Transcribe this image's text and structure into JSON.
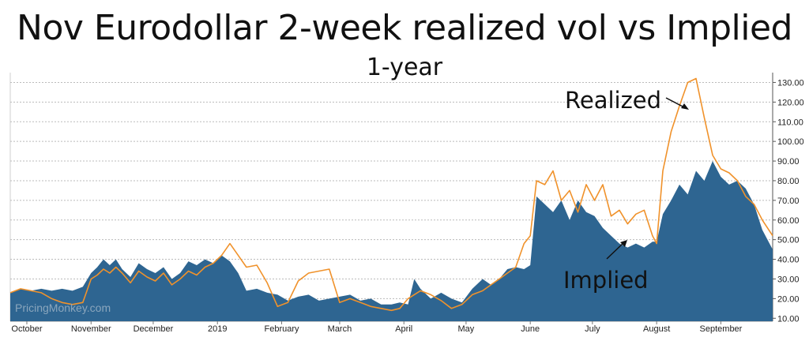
{
  "watermark": "PricingMonkey.com",
  "annotations": {
    "realized": "Realized",
    "implied": "Implied"
  },
  "chart_data": {
    "type": "area",
    "title": "Nov Eurodollar 2-week realized vol vs Implied",
    "subtitle": "1-year",
    "xlabel": "",
    "ylabel": "",
    "ylim": [
      8.5,
      135
    ],
    "y_ticks": [
      10,
      20,
      30,
      40,
      50,
      60,
      70,
      80,
      90,
      100,
      110,
      120,
      130
    ],
    "y_tick_labels": [
      "10.00",
      "20.00",
      "30.00",
      "40.00",
      "50.00",
      "60.00",
      "70.00",
      "80.00",
      "90.00",
      "100.00",
      "110.00",
      "120.00",
      "130.00"
    ],
    "x_tick_labels": [
      "October",
      "November",
      "December",
      "2019",
      "February",
      "March",
      "April",
      "May",
      "June",
      "July",
      "August",
      "September"
    ],
    "x_tick_dates": [
      "2018-10-01",
      "2018-11-01",
      "2018-12-01",
      "2019-01-01",
      "2019-02-01",
      "2019-03-01",
      "2019-04-01",
      "2019-05-01",
      "2019-06-01",
      "2019-07-01",
      "2019-08-01",
      "2019-09-01"
    ],
    "x_range": [
      "2018-09-23",
      "2019-09-26"
    ],
    "grid": true,
    "series": [
      {
        "name": "Implied",
        "style": "area",
        "color": "#2e6591",
        "points": [
          [
            "2018-09-23",
            23
          ],
          [
            "2018-09-28",
            25
          ],
          [
            "2018-10-03",
            24
          ],
          [
            "2018-10-08",
            25
          ],
          [
            "2018-10-13",
            24
          ],
          [
            "2018-10-18",
            25
          ],
          [
            "2018-10-23",
            24
          ],
          [
            "2018-10-28",
            26
          ],
          [
            "2018-11-01",
            33
          ],
          [
            "2018-11-04",
            36
          ],
          [
            "2018-11-07",
            40
          ],
          [
            "2018-11-10",
            37
          ],
          [
            "2018-11-13",
            40
          ],
          [
            "2018-11-16",
            35
          ],
          [
            "2018-11-20",
            31
          ],
          [
            "2018-11-24",
            38
          ],
          [
            "2018-11-28",
            35
          ],
          [
            "2018-12-02",
            33
          ],
          [
            "2018-12-06",
            36
          ],
          [
            "2018-12-10",
            30
          ],
          [
            "2018-12-14",
            33
          ],
          [
            "2018-12-18",
            39
          ],
          [
            "2018-12-22",
            37
          ],
          [
            "2018-12-26",
            40
          ],
          [
            "2018-12-30",
            38
          ],
          [
            "2019-01-03",
            42
          ],
          [
            "2019-01-07",
            39
          ],
          [
            "2019-01-11",
            33
          ],
          [
            "2019-01-15",
            24
          ],
          [
            "2019-01-20",
            25
          ],
          [
            "2019-01-25",
            23
          ],
          [
            "2019-01-30",
            22
          ],
          [
            "2019-02-04",
            19
          ],
          [
            "2019-02-09",
            21
          ],
          [
            "2019-02-14",
            22
          ],
          [
            "2019-02-19",
            19
          ],
          [
            "2019-02-24",
            20
          ],
          [
            "2019-03-01",
            21
          ],
          [
            "2019-03-06",
            22
          ],
          [
            "2019-03-11",
            19
          ],
          [
            "2019-03-16",
            20
          ],
          [
            "2019-03-21",
            17
          ],
          [
            "2019-03-26",
            17
          ],
          [
            "2019-03-30",
            18
          ],
          [
            "2019-04-03",
            17
          ],
          [
            "2019-04-06",
            30
          ],
          [
            "2019-04-09",
            25
          ],
          [
            "2019-04-14",
            20
          ],
          [
            "2019-04-19",
            23
          ],
          [
            "2019-04-24",
            20
          ],
          [
            "2019-04-29",
            18
          ],
          [
            "2019-05-04",
            25
          ],
          [
            "2019-05-09",
            30
          ],
          [
            "2019-05-13",
            27
          ],
          [
            "2019-05-17",
            30
          ],
          [
            "2019-05-21",
            35
          ],
          [
            "2019-05-25",
            36
          ],
          [
            "2019-05-29",
            35
          ],
          [
            "2019-06-01",
            37
          ],
          [
            "2019-06-04",
            72
          ],
          [
            "2019-06-08",
            68
          ],
          [
            "2019-06-12",
            64
          ],
          [
            "2019-06-16",
            70
          ],
          [
            "2019-06-20",
            60
          ],
          [
            "2019-06-24",
            70
          ],
          [
            "2019-06-28",
            64
          ],
          [
            "2019-07-02",
            62
          ],
          [
            "2019-07-06",
            56
          ],
          [
            "2019-07-10",
            52
          ],
          [
            "2019-07-14",
            48
          ],
          [
            "2019-07-18",
            46
          ],
          [
            "2019-07-22",
            48
          ],
          [
            "2019-07-26",
            46
          ],
          [
            "2019-07-30",
            49
          ],
          [
            "2019-08-01",
            49
          ],
          [
            "2019-08-04",
            63
          ],
          [
            "2019-08-08",
            70
          ],
          [
            "2019-08-12",
            78
          ],
          [
            "2019-08-16",
            73
          ],
          [
            "2019-08-20",
            85
          ],
          [
            "2019-08-24",
            80
          ],
          [
            "2019-08-28",
            90
          ],
          [
            "2019-09-01",
            82
          ],
          [
            "2019-09-05",
            78
          ],
          [
            "2019-09-09",
            80
          ],
          [
            "2019-09-13",
            76
          ],
          [
            "2019-09-17",
            68
          ],
          [
            "2019-09-21",
            55
          ],
          [
            "2019-09-26",
            45
          ]
        ]
      },
      {
        "name": "Realized",
        "style": "line",
        "color": "#f0922b",
        "points": [
          [
            "2018-09-23",
            23
          ],
          [
            "2018-09-28",
            25
          ],
          [
            "2018-10-03",
            24
          ],
          [
            "2018-10-08",
            23
          ],
          [
            "2018-10-13",
            20
          ],
          [
            "2018-10-18",
            18
          ],
          [
            "2018-10-23",
            17
          ],
          [
            "2018-10-28",
            18
          ],
          [
            "2018-11-01",
            30
          ],
          [
            "2018-11-04",
            32
          ],
          [
            "2018-11-07",
            35
          ],
          [
            "2018-11-10",
            33
          ],
          [
            "2018-11-13",
            36
          ],
          [
            "2018-11-16",
            33
          ],
          [
            "2018-11-20",
            28
          ],
          [
            "2018-11-24",
            34
          ],
          [
            "2018-11-28",
            31
          ],
          [
            "2018-12-02",
            29
          ],
          [
            "2018-12-06",
            33
          ],
          [
            "2018-12-10",
            27
          ],
          [
            "2018-12-14",
            30
          ],
          [
            "2018-12-18",
            34
          ],
          [
            "2018-12-22",
            32
          ],
          [
            "2018-12-26",
            36
          ],
          [
            "2018-12-30",
            38
          ],
          [
            "2019-01-03",
            42
          ],
          [
            "2019-01-07",
            48
          ],
          [
            "2019-01-11",
            42
          ],
          [
            "2019-01-15",
            36
          ],
          [
            "2019-01-20",
            37
          ],
          [
            "2019-01-25",
            28
          ],
          [
            "2019-01-30",
            16
          ],
          [
            "2019-02-04",
            18
          ],
          [
            "2019-02-09",
            29
          ],
          [
            "2019-02-14",
            33
          ],
          [
            "2019-02-19",
            34
          ],
          [
            "2019-02-24",
            35
          ],
          [
            "2019-03-01",
            18
          ],
          [
            "2019-03-06",
            20
          ],
          [
            "2019-03-11",
            18
          ],
          [
            "2019-03-16",
            16
          ],
          [
            "2019-03-21",
            15
          ],
          [
            "2019-03-26",
            14
          ],
          [
            "2019-03-30",
            15
          ],
          [
            "2019-04-03",
            20
          ],
          [
            "2019-04-06",
            22
          ],
          [
            "2019-04-09",
            24
          ],
          [
            "2019-04-14",
            22
          ],
          [
            "2019-04-19",
            19
          ],
          [
            "2019-04-24",
            15
          ],
          [
            "2019-04-29",
            17
          ],
          [
            "2019-05-04",
            22
          ],
          [
            "2019-05-09",
            24
          ],
          [
            "2019-05-13",
            27
          ],
          [
            "2019-05-17",
            30
          ],
          [
            "2019-05-21",
            33
          ],
          [
            "2019-05-25",
            36
          ],
          [
            "2019-05-29",
            48
          ],
          [
            "2019-06-01",
            52
          ],
          [
            "2019-06-04",
            80
          ],
          [
            "2019-06-08",
            78
          ],
          [
            "2019-06-12",
            85
          ],
          [
            "2019-06-16",
            70
          ],
          [
            "2019-06-20",
            75
          ],
          [
            "2019-06-24",
            64
          ],
          [
            "2019-06-28",
            78
          ],
          [
            "2019-07-02",
            70
          ],
          [
            "2019-07-06",
            78
          ],
          [
            "2019-07-10",
            62
          ],
          [
            "2019-07-14",
            65
          ],
          [
            "2019-07-18",
            58
          ],
          [
            "2019-07-22",
            63
          ],
          [
            "2019-07-26",
            65
          ],
          [
            "2019-07-30",
            52
          ],
          [
            "2019-08-01",
            48
          ],
          [
            "2019-08-04",
            85
          ],
          [
            "2019-08-08",
            105
          ],
          [
            "2019-08-12",
            118
          ],
          [
            "2019-08-16",
            130
          ],
          [
            "2019-08-20",
            132
          ],
          [
            "2019-08-24",
            112
          ],
          [
            "2019-08-28",
            93
          ],
          [
            "2019-09-01",
            86
          ],
          [
            "2019-09-05",
            84
          ],
          [
            "2019-09-09",
            80
          ],
          [
            "2019-09-13",
            72
          ],
          [
            "2019-09-17",
            68
          ],
          [
            "2019-09-21",
            60
          ],
          [
            "2019-09-26",
            52
          ]
        ]
      }
    ]
  }
}
